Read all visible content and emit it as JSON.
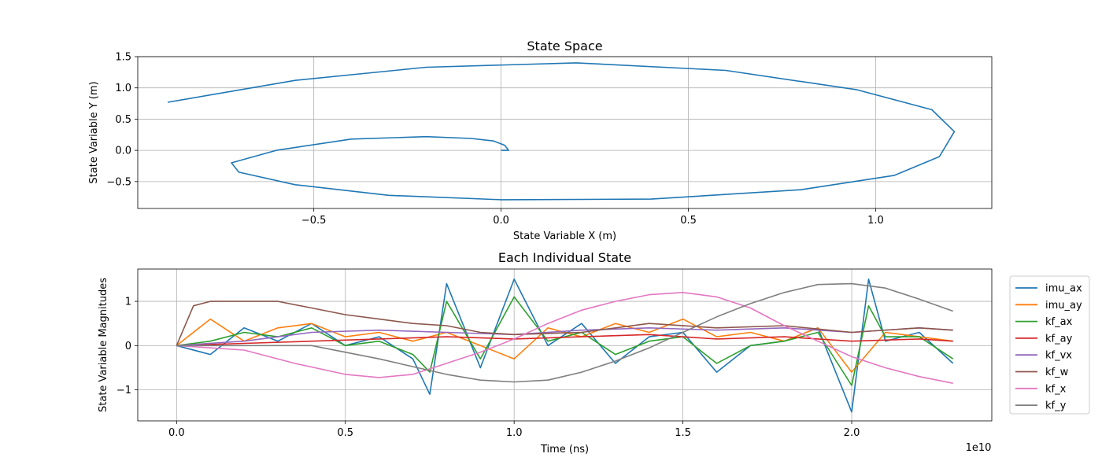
{
  "chart_data": [
    {
      "type": "line",
      "title": "State Space",
      "xlabel": "State Variable X (m)",
      "ylabel": "State Variable Y (m)",
      "xlim": [
        -0.97,
        1.31
      ],
      "ylim": [
        -0.93,
        1.5
      ],
      "xticks": [
        "−0.5",
        "0.0",
        "0.5",
        "1.0"
      ],
      "xtick_values": [
        -0.5,
        0.0,
        0.5,
        1.0
      ],
      "yticks": [
        "−0.5",
        "0.0",
        "0.5",
        "1.0",
        "1.5"
      ],
      "ytick_values": [
        -0.5,
        0.0,
        0.5,
        1.0,
        1.5
      ],
      "grid": true,
      "series": [
        {
          "color": "#1f77b4",
          "x": [
            0.0,
            0.02,
            0.01,
            -0.02,
            -0.08,
            -0.2,
            -0.4,
            -0.6,
            -0.72,
            -0.7,
            -0.55,
            -0.3,
            0.0,
            0.4,
            0.8,
            1.05,
            1.17,
            1.21,
            1.15,
            0.95,
            0.6,
            0.2,
            -0.2,
            -0.55,
            -0.89
          ],
          "y": [
            0.0,
            0.0,
            0.08,
            0.15,
            0.19,
            0.22,
            0.18,
            0.0,
            -0.2,
            -0.35,
            -0.55,
            -0.72,
            -0.79,
            -0.78,
            -0.63,
            -0.4,
            -0.1,
            0.3,
            0.65,
            0.97,
            1.28,
            1.4,
            1.33,
            1.12,
            0.77
          ]
        }
      ]
    },
    {
      "type": "line",
      "title": "Each Individual State",
      "xlabel": "Time (ns)",
      "ylabel": "State Variable Magnitudes",
      "x_offset_label": "1e10",
      "xlim": [
        -0.115,
        2.415
      ],
      "ylim": [
        -1.7,
        1.73
      ],
      "xticks": [
        "0.0",
        "0.5",
        "1.0",
        "1.5",
        "2.0"
      ],
      "xtick_values": [
        0.0,
        0.5,
        1.0,
        1.5,
        2.0
      ],
      "yticks": [
        "−1",
        "0",
        "1"
      ],
      "ytick_values": [
        -1,
        0,
        1
      ],
      "grid": true,
      "legend": "outside-right",
      "series": [
        {
          "name": "imu_ax",
          "color": "#1f77b4",
          "x": [
            0,
            0.1,
            0.2,
            0.3,
            0.4,
            0.5,
            0.6,
            0.7,
            0.75,
            0.8,
            0.9,
            1.0,
            1.1,
            1.2,
            1.3,
            1.4,
            1.5,
            1.6,
            1.7,
            1.8,
            1.9,
            2.0,
            2.05,
            2.1,
            2.2,
            2.3
          ],
          "y": [
            0,
            -0.2,
            0.4,
            0.1,
            0.5,
            0.0,
            0.2,
            -0.3,
            -1.1,
            1.4,
            -0.5,
            1.5,
            0.0,
            0.5,
            -0.4,
            0.2,
            0.3,
            -0.6,
            0.0,
            0.1,
            0.4,
            -1.5,
            1.5,
            0.1,
            0.3,
            -0.4
          ]
        },
        {
          "name": "imu_ay",
          "color": "#ff7f0e",
          "x": [
            0,
            0.1,
            0.2,
            0.3,
            0.4,
            0.5,
            0.6,
            0.7,
            0.8,
            0.9,
            1.0,
            1.1,
            1.2,
            1.3,
            1.4,
            1.5,
            1.6,
            1.7,
            1.8,
            1.9,
            2.0,
            2.1,
            2.2,
            2.3
          ],
          "y": [
            0,
            0.6,
            0.1,
            0.4,
            0.5,
            0.2,
            0.3,
            0.1,
            0.3,
            0.0,
            -0.3,
            0.4,
            0.2,
            0.5,
            0.3,
            0.6,
            0.2,
            0.3,
            0.1,
            0.4,
            -0.6,
            0.3,
            0.2,
            0.1
          ]
        },
        {
          "name": "kf_ax",
          "color": "#2ca02c",
          "x": [
            0,
            0.1,
            0.2,
            0.3,
            0.4,
            0.5,
            0.6,
            0.7,
            0.75,
            0.8,
            0.9,
            1.0,
            1.1,
            1.2,
            1.3,
            1.4,
            1.5,
            1.6,
            1.7,
            1.8,
            1.9,
            2.0,
            2.05,
            2.1,
            2.2,
            2.3
          ],
          "y": [
            0,
            0.1,
            0.3,
            0.2,
            0.4,
            0.0,
            0.1,
            -0.2,
            -0.6,
            1.0,
            -0.3,
            1.1,
            0.1,
            0.3,
            -0.2,
            0.1,
            0.2,
            -0.4,
            0.0,
            0.1,
            0.3,
            -0.9,
            0.9,
            0.2,
            0.2,
            -0.3
          ]
        },
        {
          "name": "kf_ay",
          "color": "#d62728",
          "x": [
            0,
            0.2,
            0.4,
            0.6,
            0.8,
            1.0,
            1.2,
            1.4,
            1.6,
            1.8,
            2.0,
            2.2,
            2.3
          ],
          "y": [
            0,
            0.05,
            0.1,
            0.15,
            0.2,
            0.15,
            0.2,
            0.25,
            0.15,
            0.2,
            0.1,
            0.15,
            0.1
          ]
        },
        {
          "name": "kf_vx",
          "color": "#9467bd",
          "x": [
            0,
            0.2,
            0.4,
            0.6,
            0.8,
            1.0,
            1.2,
            1.4,
            1.6,
            1.8,
            2.0,
            2.2,
            2.3
          ],
          "y": [
            0,
            0.1,
            0.3,
            0.35,
            0.3,
            0.25,
            0.35,
            0.4,
            0.35,
            0.4,
            0.3,
            0.4,
            0.35
          ]
        },
        {
          "name": "kf_w",
          "color": "#8c564b",
          "x": [
            0,
            0.05,
            0.1,
            0.2,
            0.3,
            0.4,
            0.5,
            0.6,
            0.7,
            0.8,
            0.9,
            1.0,
            1.2,
            1.4,
            1.6,
            1.8,
            2.0,
            2.2,
            2.3
          ],
          "y": [
            0,
            0.9,
            1.0,
            1.0,
            1.0,
            0.85,
            0.7,
            0.6,
            0.5,
            0.45,
            0.3,
            0.25,
            0.3,
            0.5,
            0.4,
            0.45,
            0.3,
            0.4,
            0.35
          ]
        },
        {
          "name": "kf_x",
          "color": "#e377c2",
          "x": [
            0,
            0.2,
            0.35,
            0.5,
            0.6,
            0.7,
            0.8,
            0.9,
            1.0,
            1.1,
            1.2,
            1.3,
            1.4,
            1.5,
            1.6,
            1.7,
            1.8,
            1.9,
            2.0,
            2.1,
            2.2,
            2.3
          ],
          "y": [
            0,
            -0.1,
            -0.4,
            -0.65,
            -0.72,
            -0.65,
            -0.4,
            -0.15,
            0.15,
            0.5,
            0.8,
            1.0,
            1.15,
            1.2,
            1.1,
            0.85,
            0.45,
            0.1,
            -0.25,
            -0.5,
            -0.7,
            -0.85
          ]
        },
        {
          "name": "kf_y",
          "color": "#7f7f7f",
          "x": [
            0,
            0.2,
            0.4,
            0.6,
            0.8,
            0.9,
            1.0,
            1.1,
            1.2,
            1.3,
            1.4,
            1.5,
            1.6,
            1.7,
            1.8,
            1.9,
            2.0,
            2.1,
            2.2,
            2.3
          ],
          "y": [
            0,
            0.0,
            0.0,
            -0.3,
            -0.65,
            -0.78,
            -0.82,
            -0.78,
            -0.6,
            -0.35,
            -0.05,
            0.3,
            0.65,
            0.95,
            1.2,
            1.38,
            1.4,
            1.3,
            1.05,
            0.78
          ]
        }
      ]
    }
  ]
}
